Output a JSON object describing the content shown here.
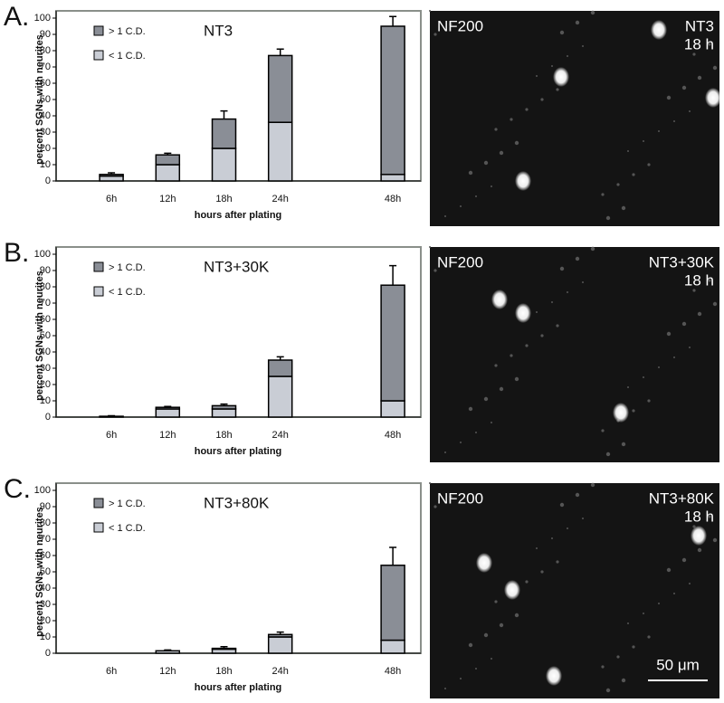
{
  "chart_data": [
    {
      "type": "stacked-bar",
      "panel": "A.",
      "title": "NT3",
      "y_label": "percent SGNs with neurites",
      "x_label": "hours after plating",
      "categories": [
        "6h",
        "12h",
        "18h",
        "24h",
        null,
        "48h"
      ],
      "series": [
        {
          "name": "< 1 C.D.",
          "color": "#c9cdd5",
          "values": [
            3,
            10,
            20,
            36,
            null,
            4
          ],
          "errors": [
            null,
            1,
            7,
            9,
            null,
            1
          ]
        },
        {
          "name": "> 1 C.D.",
          "color": "#8a8e96",
          "values": [
            1,
            6,
            18,
            41,
            null,
            91
          ],
          "errors": [
            1,
            1,
            5,
            4,
            null,
            6
          ]
        }
      ],
      "ylim": [
        0,
        100
      ],
      "yticks": [
        0,
        10,
        20,
        30,
        40,
        50,
        60,
        70,
        80,
        90,
        100
      ],
      "image_labels": [
        "NF200",
        "NT3",
        "18 h"
      ]
    },
    {
      "type": "stacked-bar",
      "panel": "B.",
      "title": "NT3+30K",
      "y_label": "percent SGNs with neurites",
      "x_label": "hours after plating",
      "categories": [
        "6h",
        "12h",
        "18h",
        "24h",
        null,
        "48h"
      ],
      "series": [
        {
          "name": "< 1 C.D.",
          "color": "#c9cdd5",
          "values": [
            0.5,
            5,
            5,
            25,
            null,
            10
          ],
          "errors": [
            null,
            null,
            null,
            6,
            null,
            5
          ]
        },
        {
          "name": "> 1 C.D.",
          "color": "#8a8e96",
          "values": [
            0,
            1,
            2,
            10,
            null,
            71
          ],
          "errors": [
            0.3,
            0.5,
            1,
            2,
            null,
            12
          ]
        }
      ],
      "ylim": [
        0,
        100
      ],
      "yticks": [
        0,
        10,
        20,
        30,
        40,
        50,
        60,
        70,
        80,
        90,
        100
      ],
      "image_labels": [
        "NF200",
        "NT3+30K",
        "18 h"
      ]
    },
    {
      "type": "stacked-bar",
      "panel": "C.",
      "title": "NT3+80K",
      "y_label": "percent SGNs with neurites",
      "x_label": "hours after plating",
      "categories": [
        "6h",
        "12h",
        "18h",
        "24h",
        null,
        "48h"
      ],
      "series": [
        {
          "name": "< 1 C.D.",
          "color": "#c9cdd5",
          "values": [
            0,
            1.5,
            2.5,
            10,
            null,
            8
          ],
          "errors": [
            null,
            null,
            null,
            null,
            null,
            8
          ]
        },
        {
          "name": "> 1 C.D.",
          "color": "#8a8e96",
          "values": [
            0,
            0,
            0.5,
            1.5,
            null,
            46
          ],
          "errors": [
            null,
            0.5,
            1,
            1.5,
            null,
            11
          ]
        }
      ],
      "ylim": [
        0,
        100
      ],
      "yticks": [
        0,
        10,
        20,
        30,
        40,
        50,
        60,
        70,
        80,
        90,
        100
      ],
      "image_labels": [
        "NF200",
        "NT3+80K",
        "18 h"
      ]
    }
  ],
  "scale_bar": "50 μm"
}
